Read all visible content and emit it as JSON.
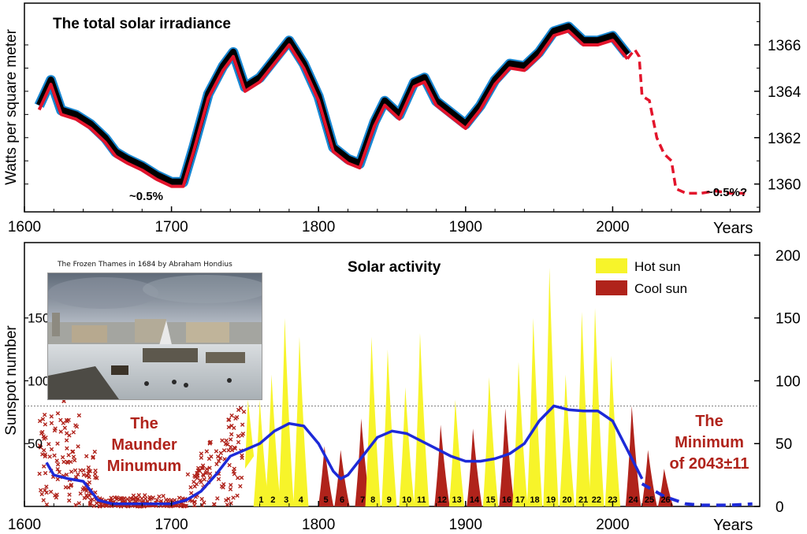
{
  "chart_data": [
    {
      "type": "line",
      "title": "The total solar irradiance",
      "ylabel": "Watts per square meter",
      "xlabel": "Years",
      "xlim": [
        1600,
        2100
      ],
      "ylim": [
        1358.8,
        1367.8
      ],
      "x_ticks": [
        "1600",
        "1700",
        "1800",
        "1900",
        "2000"
      ],
      "y_ticks": [
        "1360",
        "1362",
        "1364",
        "1366"
      ],
      "series": [
        {
          "color": "#e3142b",
          "x": [
            1610,
            1618,
            1625,
            1635,
            1645,
            1655,
            1662,
            1670,
            1680,
            1690,
            1700,
            1708,
            1715,
            1725,
            1735,
            1742,
            1750,
            1760,
            1770,
            1780,
            1790,
            1800,
            1810,
            1820,
            1828,
            1838,
            1845,
            1855,
            1865,
            1872,
            1880,
            1890,
            1900,
            1910,
            1920,
            1930,
            1940,
            1950,
            1960,
            1970,
            1980,
            1990,
            2000,
            2010
          ],
          "y": [
            1363.2,
            1364.3,
            1363.0,
            1362.8,
            1362.4,
            1361.8,
            1361.2,
            1360.9,
            1360.6,
            1360.2,
            1359.9,
            1359.9,
            1361.4,
            1363.7,
            1364.9,
            1365.5,
            1364.0,
            1364.4,
            1365.2,
            1366.0,
            1365.0,
            1363.6,
            1361.4,
            1360.9,
            1360.7,
            1362.5,
            1363.4,
            1362.8,
            1364.2,
            1364.4,
            1363.4,
            1362.9,
            1362.4,
            1363.2,
            1364.3,
            1365.0,
            1364.9,
            1365.5,
            1366.4,
            1366.6,
            1366.0,
            1366.0,
            1366.2,
            1365.4
          ]
        },
        {
          "color": "#e3142b",
          "style": "dashed",
          "x": [
            2010,
            2015,
            2018,
            2020,
            2025,
            2030,
            2035,
            2040,
            2043,
            2050,
            2060,
            2070,
            2080,
            2090
          ],
          "y": [
            1365.4,
            1365.8,
            1365.5,
            1363.8,
            1363.6,
            1362.0,
            1361.3,
            1361.0,
            1359.8,
            1359.6,
            1359.6,
            1359.7,
            1359.6,
            1359.6
          ]
        }
      ],
      "annotations": [
        "~0.5%",
        "~0.5%?"
      ]
    },
    {
      "type": "area",
      "title": "Solar activity",
      "ylabel": "Sunspot number",
      "xlabel": "Years",
      "xlim": [
        1600,
        2100
      ],
      "ylim": [
        0,
        210
      ],
      "x_ticks": [
        "1600",
        "1700",
        "1800",
        "1900",
        "2000"
      ],
      "y_ticks": [
        "0",
        "50",
        "100",
        "150",
        "200"
      ],
      "legend": [
        {
          "label": "Hot sun",
          "color": "#f7f42a"
        },
        {
          "label": "Cool sun",
          "color": "#b0231b"
        }
      ],
      "legend_placement": "top-right",
      "dotted_level": 80,
      "cycles": [
        {
          "n": "1",
          "x": 1761,
          "peak": 85,
          "kind": "hot"
        },
        {
          "n": "2",
          "x": 1769,
          "peak": 105,
          "kind": "hot"
        },
        {
          "n": "3",
          "x": 1778,
          "peak": 150,
          "kind": "hot"
        },
        {
          "n": "4",
          "x": 1788,
          "peak": 135,
          "kind": "hot"
        },
        {
          "n": "5",
          "x": 1805,
          "peak": 48,
          "kind": "cool"
        },
        {
          "n": "6",
          "x": 1816,
          "peak": 45,
          "kind": "cool"
        },
        {
          "n": "7",
          "x": 1830,
          "peak": 70,
          "kind": "cool"
        },
        {
          "n": "8",
          "x": 1837,
          "peak": 135,
          "kind": "hot"
        },
        {
          "n": "9",
          "x": 1848,
          "peak": 125,
          "kind": "hot"
        },
        {
          "n": "10",
          "x": 1860,
          "peak": 95,
          "kind": "hot"
        },
        {
          "n": "11",
          "x": 1870,
          "peak": 138,
          "kind": "hot"
        },
        {
          "n": "12",
          "x": 1884,
          "peak": 65,
          "kind": "cool"
        },
        {
          "n": "13",
          "x": 1894,
          "peak": 85,
          "kind": "hot"
        },
        {
          "n": "14",
          "x": 1906,
          "peak": 62,
          "kind": "cool"
        },
        {
          "n": "15",
          "x": 1917,
          "peak": 103,
          "kind": "hot"
        },
        {
          "n": "16",
          "x": 1928,
          "peak": 78,
          "kind": "cool"
        },
        {
          "n": "17",
          "x": 1937,
          "peak": 115,
          "kind": "hot"
        },
        {
          "n": "18",
          "x": 1947,
          "peak": 150,
          "kind": "hot"
        },
        {
          "n": "19",
          "x": 1958,
          "peak": 190,
          "kind": "hot"
        },
        {
          "n": "20",
          "x": 1969,
          "peak": 105,
          "kind": "hot"
        },
        {
          "n": "21",
          "x": 1980,
          "peak": 155,
          "kind": "hot"
        },
        {
          "n": "22",
          "x": 1989,
          "peak": 158,
          "kind": "hot"
        },
        {
          "n": "23",
          "x": 2000,
          "peak": 120,
          "kind": "hot"
        },
        {
          "n": "24",
          "x": 2014,
          "peak": 80,
          "kind": "cool"
        },
        {
          "n": "25",
          "x": 2025,
          "peak": 45,
          "kind": "cool"
        },
        {
          "n": "26",
          "x": 2036,
          "peak": 30,
          "kind": "cool"
        }
      ],
      "trend": {
        "color": "#1d2ad8",
        "x": [
          1615,
          1620,
          1630,
          1640,
          1650,
          1660,
          1680,
          1700,
          1710,
          1720,
          1730,
          1740,
          1750,
          1760,
          1770,
          1780,
          1790,
          1800,
          1810,
          1815,
          1820,
          1830,
          1840,
          1850,
          1860,
          1870,
          1880,
          1890,
          1900,
          1910,
          1920,
          1930,
          1940,
          1950,
          1960,
          1970,
          1980,
          1990,
          2000,
          2010,
          2020
        ],
        "y": [
          35,
          25,
          22,
          20,
          5,
          2,
          2,
          2,
          5,
          12,
          25,
          40,
          45,
          50,
          60,
          66,
          64,
          50,
          28,
          22,
          25,
          40,
          55,
          60,
          58,
          52,
          46,
          40,
          36,
          36,
          38,
          42,
          50,
          68,
          80,
          77,
          76,
          76,
          68,
          45,
          22
        ]
      },
      "forecast": {
        "color": "#1d2ad8",
        "style": "dashed",
        "x": [
          2020,
          2035,
          2050,
          2060,
          2070,
          2080,
          2095
        ],
        "y": [
          18,
          8,
          2,
          1,
          1,
          1,
          2
        ]
      },
      "annotations": [
        {
          "lines": [
            "The",
            "Maunder",
            "Minumum"
          ]
        },
        {
          "lines": [
            "The",
            "Minimum",
            "of 2043±11"
          ]
        }
      ]
    }
  ],
  "inset": {
    "caption": "The Frozen Thames in 1684 by Abraham Hondius"
  }
}
